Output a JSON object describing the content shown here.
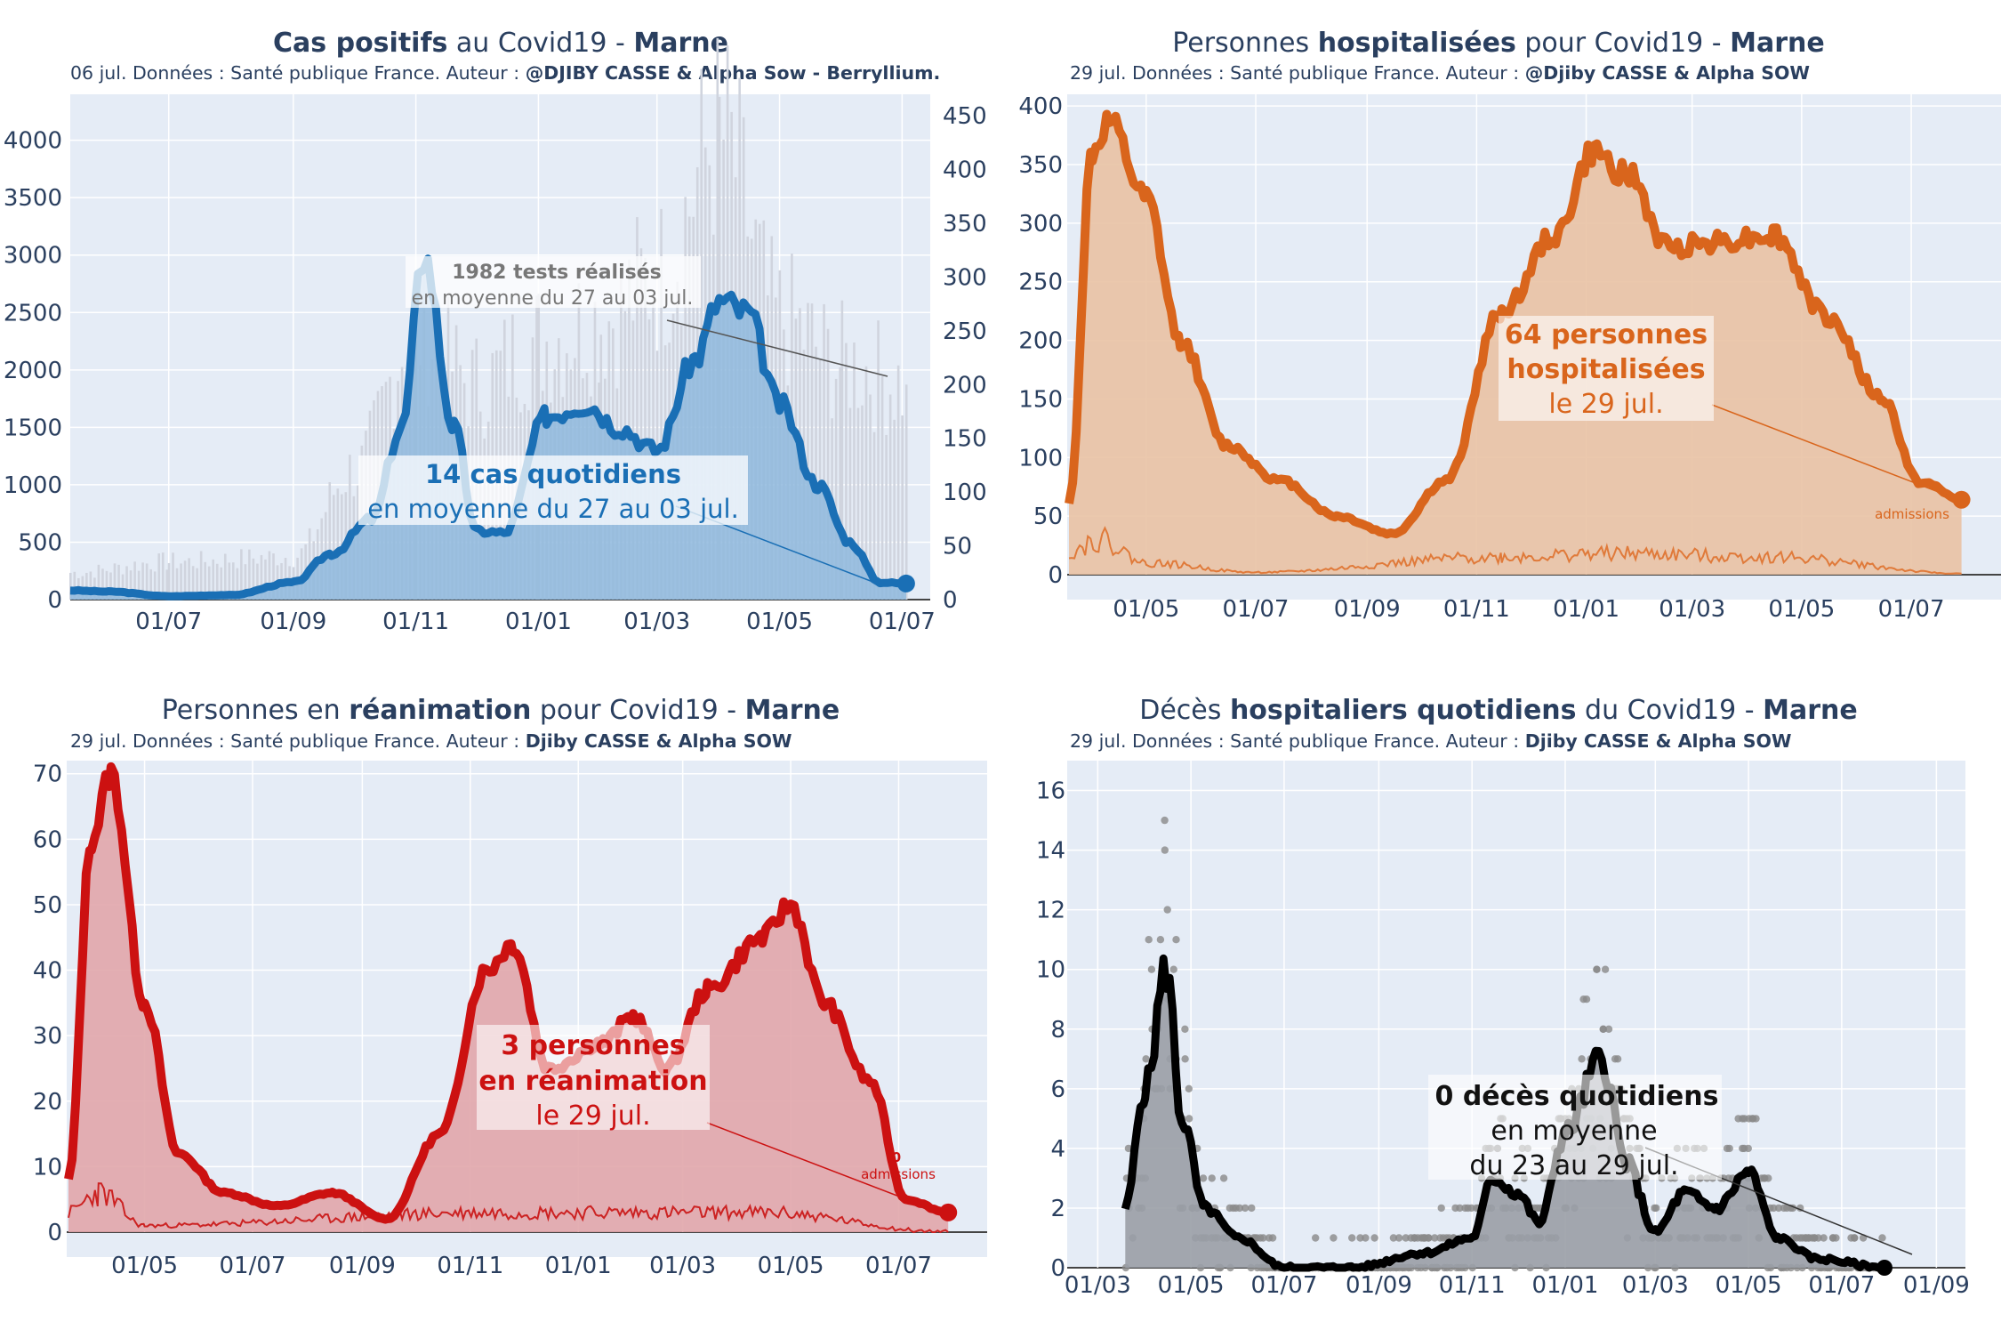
{
  "charts": [
    {
      "id": "cases",
      "title_parts": [
        {
          "t": "Cas positifs",
          "b": true
        },
        {
          "t": " au Covid19 - ",
          "b": false
        },
        {
          "t": "Marne",
          "b": true
        }
      ],
      "subtitle_plain": "06 jul. Données : Santé publique France. Auteur : ",
      "subtitle_bold": "@DJIBY CASSE & Alpha Sow - Berryllium.",
      "yticks_left": [
        "0",
        "500",
        "1000",
        "1500",
        "2000",
        "2500",
        "3000",
        "3500",
        "4000"
      ],
      "yticks_right": [
        "0",
        "50",
        "100",
        "150",
        "200",
        "250",
        "300",
        "350",
        "400",
        "450"
      ],
      "xticks": [
        "01/07",
        "01/09",
        "01/11",
        "01/01",
        "01/03",
        "01/05",
        "01/07"
      ],
      "annotation_main": {
        "line1": "14 cas quotidiens",
        "line2": "en moyenne du 27 au 03 jul."
      },
      "annotation_tests": {
        "line1": "1982 tests réalisés",
        "line2": "en moyenne du 27 au 03 jul."
      },
      "colors": {
        "line": "#1a6fb5",
        "fill": "#8fb9dd",
        "bars": "#d0d4de"
      }
    },
    {
      "id": "hosp",
      "title_parts": [
        {
          "t": "Personnes ",
          "b": false
        },
        {
          "t": "hospitalisées",
          "b": true
        },
        {
          "t": " pour Covid19 - ",
          "b": false
        },
        {
          "t": "Marne",
          "b": true
        }
      ],
      "subtitle_plain": "29 jul. Données : Santé publique France. Auteur : ",
      "subtitle_bold": "@Djiby CASSE & Alpha SOW",
      "yticks_left": [
        "0",
        "50",
        "100",
        "150",
        "200",
        "250",
        "300",
        "350",
        "400"
      ],
      "xticks": [
        "01/05",
        "01/07",
        "01/09",
        "01/11",
        "01/01",
        "01/03",
        "01/05",
        "01/07"
      ],
      "annotation_main": {
        "line1": "64 personnes",
        "line2": "hospitalisées",
        "line3": "le 29 jul."
      },
      "small_label": "admissions",
      "colors": {
        "line": "#d9651c",
        "fill": "#e9c2a4",
        "thin": "#e07a3a"
      }
    },
    {
      "id": "rea",
      "title_parts": [
        {
          "t": "Personnes en ",
          "b": false
        },
        {
          "t": "réanimation",
          "b": true
        },
        {
          "t": " pour Covid19 - ",
          "b": false
        },
        {
          "t": "Marne",
          "b": true
        }
      ],
      "subtitle_plain": "29 jul. Données : Santé publique France. Auteur : ",
      "subtitle_bold": "Djiby CASSE & Alpha SOW",
      "yticks_left": [
        "0",
        "10",
        "20",
        "30",
        "40",
        "50",
        "60",
        "70"
      ],
      "xticks": [
        "01/05",
        "01/07",
        "01/09",
        "01/11",
        "01/01",
        "01/03",
        "01/05",
        "01/07"
      ],
      "annotation_main": {
        "line1": "3 personnes",
        "line2": "en réanimation",
        "line3": "le 29 jul."
      },
      "small_label": {
        "line1": "0",
        "line2": "admissions"
      },
      "colors": {
        "line": "#cc1111",
        "fill": "#e1a6ab",
        "thin": "#cc2222"
      }
    },
    {
      "id": "deaths",
      "title_parts": [
        {
          "t": "Décès ",
          "b": false
        },
        {
          "t": "hospitaliers quotidiens",
          "b": true
        },
        {
          "t": " du Covid19 - ",
          "b": false
        },
        {
          "t": "Marne",
          "b": true
        }
      ],
      "subtitle_plain": "29 jul. Données : Santé publique France. Auteur : ",
      "subtitle_bold": "Djiby CASSE & Alpha SOW",
      "yticks_left": [
        "0",
        "2",
        "4",
        "6",
        "8",
        "10",
        "12",
        "14",
        "16"
      ],
      "xticks": [
        "01/03",
        "01/05",
        "01/07",
        "01/09",
        "01/11",
        "01/01",
        "01/03",
        "01/05",
        "01/07",
        "01/09"
      ],
      "annotation_main": {
        "line1": "0 décès quotidiens",
        "line2": "en moyenne",
        "line3": "du 23 au 29 jul."
      },
      "colors": {
        "line": "#000000",
        "fill": "#9a9ea6",
        "dots": "#8a8a8a"
      }
    }
  ],
  "chart_data": [
    {
      "type": "area",
      "title": "Cas positifs au Covid19 - Marne",
      "ylim": [
        0,
        4400
      ],
      "y2lim": [
        0,
        470
      ],
      "series": [
        {
          "name": "",
          "x": [
            "2020-05-13",
            "2020-06-01",
            "2020-07-01",
            "2020-08-01",
            "2020-09-01",
            "2020-09-20",
            "2020-10-10",
            "2020-10-25",
            "2020-11-05",
            "2020-11-20",
            "2020-12-01",
            "2020-12-15",
            "2021-01-05",
            "2021-01-25",
            "2021-02-10",
            "2021-03-01",
            "2021-03-20",
            "2021-04-01",
            "2021-04-15",
            "2021-05-01",
            "2021-05-20",
            "2021-06-05",
            "2021-06-20",
            "2021-07-03"
          ],
          "values": [
            80,
            70,
            30,
            40,
            150,
            400,
            700,
            1500,
            3000,
            1500,
            600,
            580,
            1600,
            1700,
            1500,
            1300,
            2100,
            2600,
            2500,
            1700,
            1000,
            500,
            150,
            140
          ]
        },
        {
          "name": "",
          "axis": "right",
          "x": [
            "2020-05-13",
            "2020-07-01",
            "2020-09-01",
            "2020-10-01",
            "2020-11-01",
            "2020-12-01",
            "2021-01-01",
            "2021-02-01",
            "2021-03-01",
            "2021-04-01",
            "2021-05-01",
            "2021-06-01",
            "2021-07-03"
          ],
          "values": [
            25,
            35,
            40,
            120,
            250,
            200,
            240,
            260,
            300,
            430,
            260,
            220,
            200
          ]
        }
      ]
    },
    {
      "type": "area",
      "title": "Personnes hospitalisées pour Covid19 - Marne",
      "ylim": [
        0,
        410
      ],
      "series": [
        {
          "name": "",
          "x": [
            "2020-03-19",
            "2020-04-01",
            "2020-04-10",
            "2020-05-01",
            "2020-05-20",
            "2020-06-15",
            "2020-07-15",
            "2020-08-15",
            "2020-09-15",
            "2020-10-15",
            "2020-11-15",
            "2020-12-15",
            "2021-01-05",
            "2021-01-25",
            "2021-02-15",
            "2021-03-15",
            "2021-04-15",
            "2021-05-15",
            "2021-06-15",
            "2021-07-05",
            "2021-07-29"
          ],
          "values": [
            60,
            360,
            385,
            320,
            200,
            110,
            80,
            50,
            35,
            80,
            225,
            290,
            360,
            340,
            280,
            285,
            290,
            220,
            150,
            80,
            64
          ]
        },
        {
          "name": "admissions",
          "x": [
            "2020-03-19",
            "2020-04-05",
            "2020-05-01",
            "2020-07-01",
            "2020-11-15",
            "2021-01-15",
            "2021-04-15",
            "2021-07-29"
          ],
          "values": [
            20,
            30,
            10,
            2,
            15,
            18,
            15,
            1
          ]
        }
      ]
    },
    {
      "type": "area",
      "title": "Personnes en réanimation pour Covid19 - Marne",
      "ylim": [
        0,
        72
      ],
      "series": [
        {
          "name": "",
          "x": [
            "2020-03-19",
            "2020-04-01",
            "2020-04-12",
            "2020-05-01",
            "2020-05-20",
            "2020-06-15",
            "2020-07-15",
            "2020-08-15",
            "2020-09-15",
            "2020-10-15",
            "2020-11-10",
            "2020-11-25",
            "2020-12-15",
            "2021-01-15",
            "2021-02-01",
            "2021-02-20",
            "2021-03-15",
            "2021-04-15",
            "2021-05-01",
            "2021-05-20",
            "2021-06-15",
            "2021-07-05",
            "2021-07-29"
          ],
          "values": [
            8,
            60,
            70,
            35,
            12,
            6,
            4,
            6,
            2,
            15,
            40,
            44,
            25,
            29,
            33,
            25,
            37,
            45,
            50,
            35,
            23,
            5,
            3
          ]
        },
        {
          "name": "0 admissions",
          "x": [
            "2020-03-19",
            "2020-04-05",
            "2020-05-01",
            "2020-11-15",
            "2021-04-15",
            "2021-07-29"
          ],
          "values": [
            3,
            6,
            1,
            3,
            3,
            0
          ]
        }
      ]
    },
    {
      "type": "area",
      "title": "Décès hospitaliers quotidiens du Covid19 - Marne",
      "ylim": [
        0,
        17
      ],
      "series": [
        {
          "name": "",
          "x": [
            "2020-03-19",
            "2020-04-01",
            "2020-04-15",
            "2020-04-25",
            "2020-05-10",
            "2020-06-01",
            "2020-07-01",
            "2020-08-15",
            "2020-10-01",
            "2020-11-01",
            "2020-11-15",
            "2020-12-01",
            "2020-12-15",
            "2021-01-01",
            "2021-01-25",
            "2021-02-10",
            "2021-03-01",
            "2021-03-20",
            "2021-04-10",
            "2021-05-01",
            "2021-05-20",
            "2021-06-15",
            "2021-07-29"
          ],
          "values": [
            2,
            6,
            10,
            5,
            2,
            1,
            0,
            0,
            0.5,
            1,
            3,
            2.5,
            1.5,
            4.5,
            7,
            3.5,
            1.2,
            2.5,
            2,
            3.2,
            1,
            0.3,
            0
          ]
        }
      ]
    }
  ]
}
